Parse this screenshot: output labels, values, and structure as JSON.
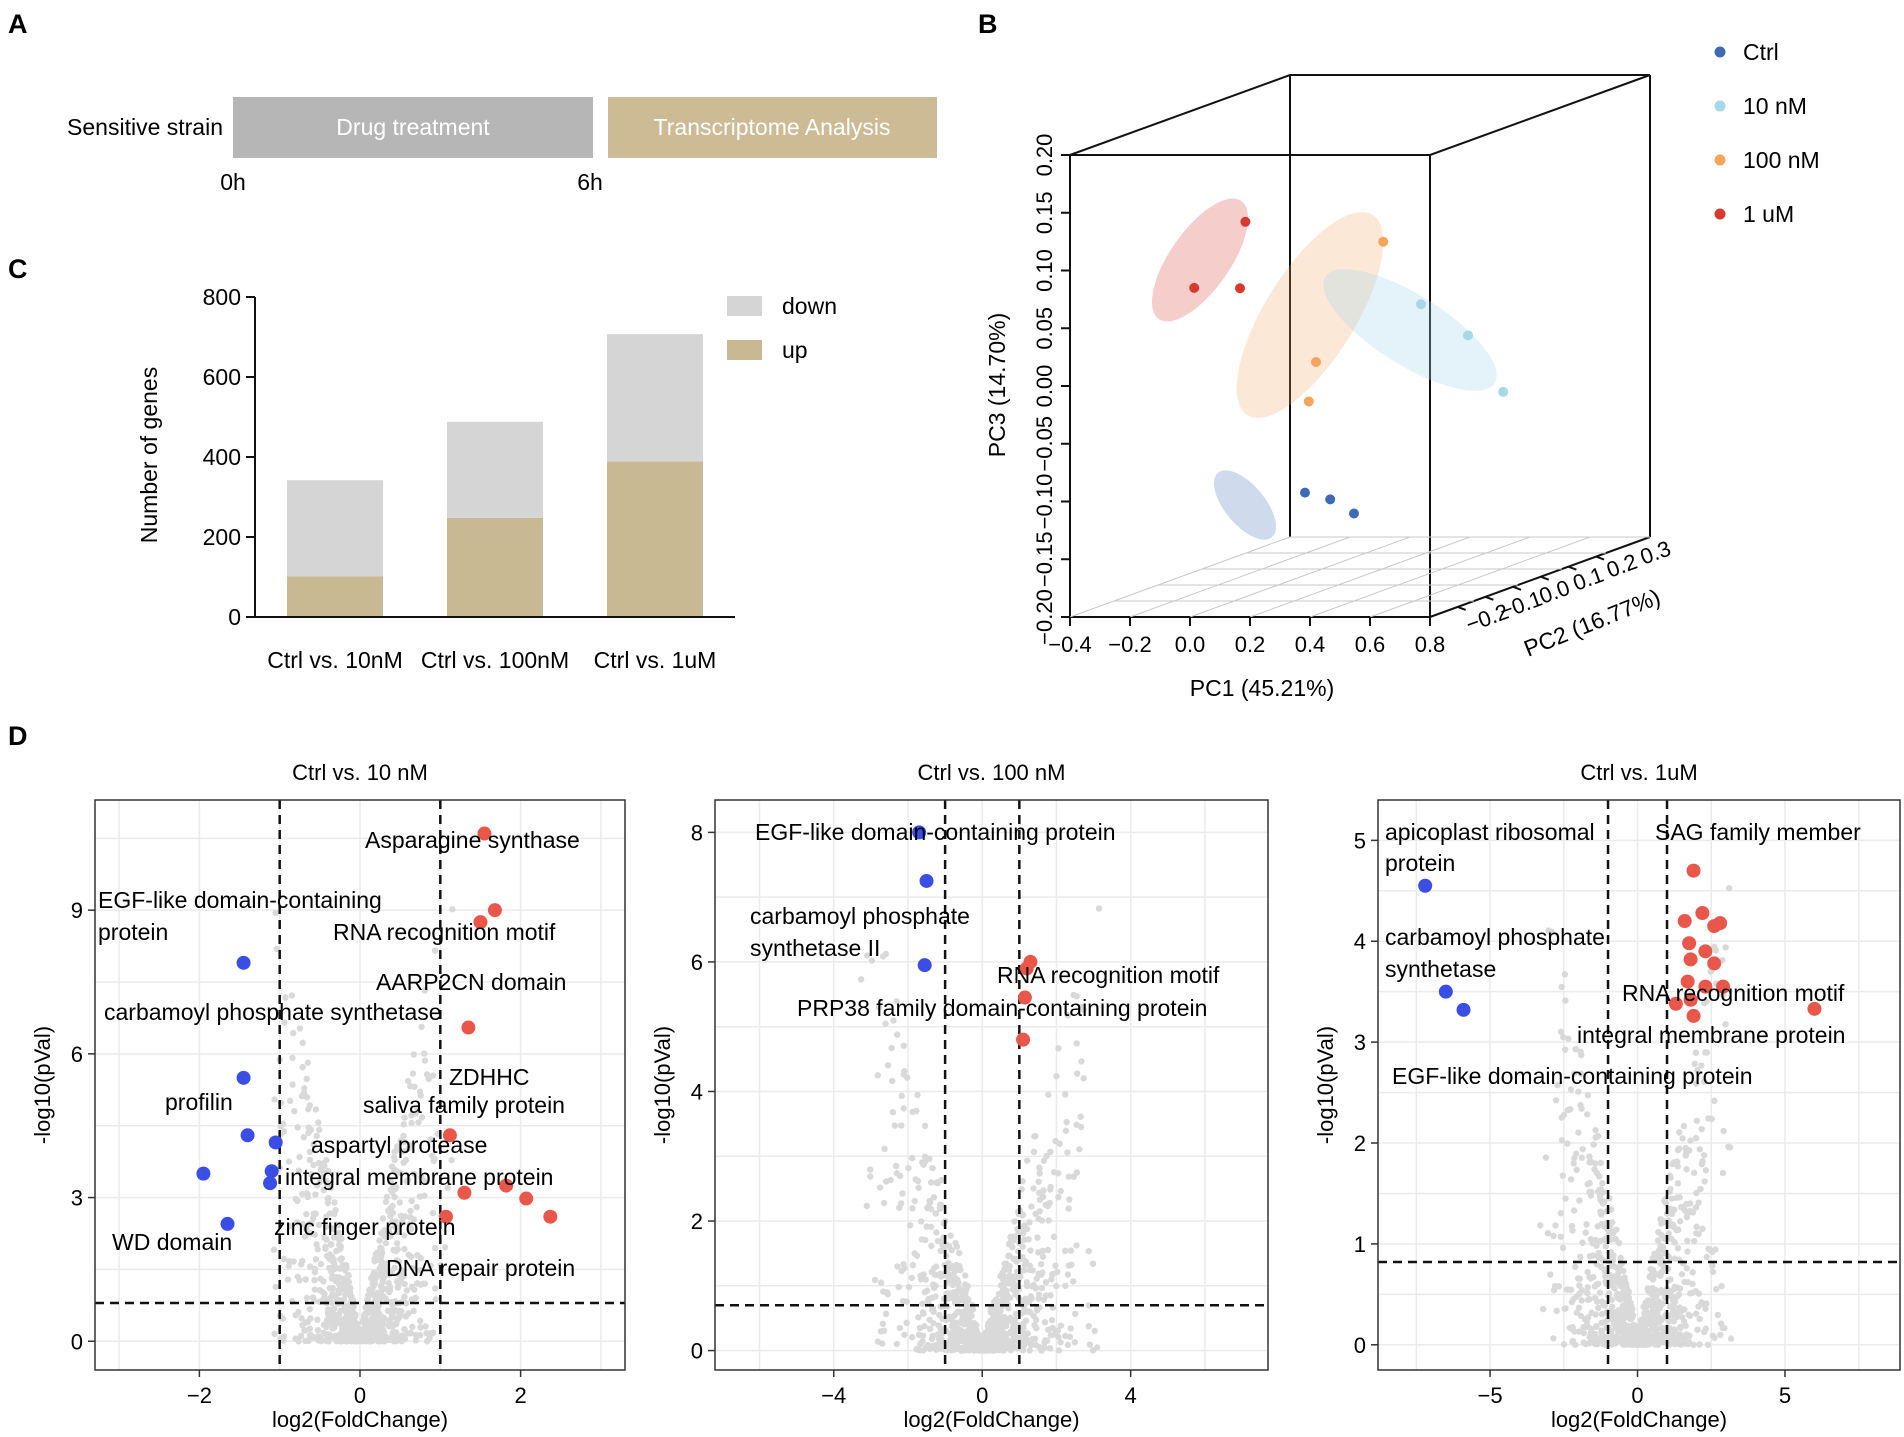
{
  "panels": {
    "a": "A",
    "b": "B",
    "c": "C",
    "d": "D"
  },
  "timeline": {
    "strain_label": "Sensitive strain",
    "drug_label": "Drug treatment",
    "transcriptome_label": "Transcriptome Analysis",
    "t0": "0h",
    "t6": "6h",
    "colors": {
      "drug": "#b6b6b6",
      "transcriptome": "#cdbb95"
    }
  },
  "chart_data": [
    {
      "id": "bar",
      "type": "bar",
      "stacked": true,
      "title": "",
      "ylabel": "Number of genes",
      "ylim": [
        0,
        800
      ],
      "yticks": [
        0,
        200,
        400,
        600,
        800
      ],
      "categories": [
        "Ctrl vs. 10nM",
        "Ctrl vs. 100nM",
        "Ctrl vs. 1uM"
      ],
      "series": [
        {
          "name": "up",
          "values": [
            102,
            248,
            389
          ],
          "color": "#c9b993"
        },
        {
          "name": "down",
          "values": [
            240,
            240,
            318
          ],
          "color": "#d5d5d5"
        }
      ],
      "legend": [
        "down",
        "up"
      ],
      "legend_position": "top-right"
    },
    {
      "id": "pca",
      "type": "scatter",
      "projection": "3d",
      "xlabel": "PC1 (45.21%)",
      "ylabel": "PC2 (16.77%)",
      "zlabel": "PC3 (14.70%)",
      "xticks": [
        "−0.4",
        "−0.2",
        "0.0",
        "0.2",
        "0.4",
        "0.6",
        "0.8"
      ],
      "yticks": [
        "−0.2",
        "−0.1",
        "0.0",
        "0.1",
        "0.2",
        "0.3"
      ],
      "zticks": [
        "−0.20",
        "−0.15",
        "−0.10",
        "−0.05",
        "0.00",
        "0.05",
        "0.10",
        "0.15",
        "0.20"
      ],
      "xlim": [
        -0.4,
        0.8
      ],
      "ylim": [
        -0.2,
        0.3
      ],
      "zlim": [
        -0.2,
        0.2
      ],
      "legend_position": "top-right",
      "groups": [
        {
          "name": "Ctrl",
          "color": "#3f6bb4",
          "points": [
            [
              0.09,
              0.0,
              -0.12
            ],
            [
              0.13,
              0.03,
              -0.13
            ],
            [
              0.18,
              0.05,
              -0.145
            ]
          ]
        },
        {
          "name": "10 nM",
          "color": "#a6d8ea",
          "points": [
            [
              0.55,
              -0.05,
              0.05
            ],
            [
              0.78,
              -0.1,
              0.03
            ],
            [
              0.78,
              -0.02,
              -0.03
            ]
          ]
        },
        {
          "name": "100 nM",
          "color": "#f4a55b",
          "points": [
            [
              0.38,
              -0.02,
              0.1
            ],
            [
              0.2,
              -0.05,
              0.0
            ],
            [
              0.22,
              -0.08,
              -0.03
            ]
          ]
        },
        {
          "name": "1 uM",
          "color": "#d63a2f",
          "points": [
            [
              -0.05,
              -0.04,
              0.12
            ],
            [
              -0.25,
              -0.02,
              0.06
            ],
            [
              -0.2,
              0.05,
              0.05
            ]
          ]
        }
      ]
    },
    {
      "id": "v10",
      "type": "scatter",
      "title": "Ctrl vs. 10 nM",
      "xlabel": "log2(FoldChange)",
      "ylabel": "-log10(pVal)",
      "xlim": [
        -3.3,
        3.3
      ],
      "ylim": [
        -0.6,
        11.3
      ],
      "xticks": [
        -2,
        0,
        2
      ],
      "yticks": [
        0,
        3,
        6,
        9
      ],
      "vlines": [
        -1,
        1
      ],
      "hline": 0.8,
      "down": [
        [
          -1.45,
          7.9
        ],
        [
          -1.45,
          5.5
        ],
        [
          -1.4,
          4.3
        ],
        [
          -1.05,
          4.15
        ],
        [
          -1.95,
          3.5
        ],
        [
          -1.1,
          3.55
        ],
        [
          -1.12,
          3.3
        ],
        [
          -1.65,
          2.45
        ]
      ],
      "up": [
        [
          1.55,
          10.6
        ],
        [
          1.68,
          9.0
        ],
        [
          1.5,
          8.75
        ],
        [
          1.35,
          6.55
        ],
        [
          1.12,
          4.3
        ],
        [
          1.82,
          3.25
        ],
        [
          2.07,
          2.98
        ],
        [
          2.37,
          2.6
        ],
        [
          1.07,
          2.6
        ],
        [
          1.3,
          3.1
        ]
      ],
      "labels": [
        "Asparagine synthase",
        "EGF-like domain-containing",
        "protein",
        "RNA recognition motif",
        "AARP2CN domain",
        "carbamoyl phosphate synthetase",
        "ZDHHC",
        "saliva family protein",
        "profilin",
        "aspartyl protease",
        "integral membrane protein",
        "WD domain",
        "zinc finger protein",
        "DNA repair protein"
      ]
    },
    {
      "id": "v100",
      "type": "scatter",
      "title": "Ctrl vs. 100 nM",
      "xlabel": "log2(FoldChange)",
      "ylabel": "-log10(pVal)",
      "xlim": [
        -7.2,
        7.7
      ],
      "ylim": [
        -0.3,
        8.5
      ],
      "xticks": [
        -4,
        0,
        4
      ],
      "yticks": [
        0,
        2,
        4,
        6,
        8
      ],
      "vlines": [
        -1,
        1
      ],
      "hline": 0.7,
      "down": [
        [
          -1.7,
          8.0
        ],
        [
          -1.5,
          7.25
        ],
        [
          -1.55,
          5.95
        ]
      ],
      "up": [
        [
          1.3,
          6.0
        ],
        [
          1.2,
          5.9
        ],
        [
          1.15,
          5.45
        ],
        [
          1.1,
          4.8
        ]
      ],
      "labels": [
        "EGF-like domain-containing protein",
        "carbamoyl phosphate",
        "synthetase II",
        "RNA recognition motif",
        "PRP38 family domain-containing protein"
      ]
    },
    {
      "id": "v1u",
      "type": "scatter",
      "title": "Ctrl vs. 1uM",
      "xlabel": "log2(FoldChange)",
      "ylabel": "-log10(pVal)",
      "xlim": [
        -8.8,
        8.9
      ],
      "ylim": [
        -0.25,
        5.4
      ],
      "xticks": [
        -5,
        0,
        5
      ],
      "yticks": [
        0,
        1,
        2,
        3,
        4,
        5
      ],
      "vlines": [
        -1,
        1
      ],
      "hline": 0.82,
      "down": [
        [
          -7.2,
          4.55
        ],
        [
          -6.5,
          3.5
        ],
        [
          -5.9,
          3.32
        ]
      ],
      "up": [
        [
          1.9,
          4.7
        ],
        [
          1.6,
          4.2
        ],
        [
          2.2,
          4.28
        ],
        [
          2.6,
          4.15
        ],
        [
          2.8,
          4.18
        ],
        [
          1.75,
          3.98
        ],
        [
          2.3,
          3.9
        ],
        [
          1.8,
          3.82
        ],
        [
          2.6,
          3.78
        ],
        [
          1.7,
          3.6
        ],
        [
          2.3,
          3.55
        ],
        [
          2.9,
          3.55
        ],
        [
          1.3,
          3.38
        ],
        [
          1.8,
          3.42
        ],
        [
          1.9,
          3.26
        ],
        [
          6.0,
          3.33
        ]
      ],
      "labels": [
        "apicoplast ribosomal",
        "protein",
        "SAG family member",
        "carbamoyl phosphate",
        "synthetase",
        "RNA recognition motif",
        "integral membrane protein",
        "EGF-like domain-containing protein"
      ]
    }
  ]
}
